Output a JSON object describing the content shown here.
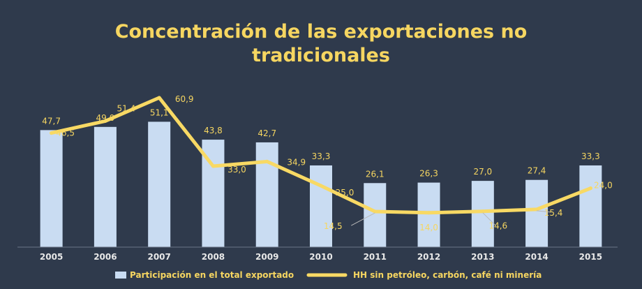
{
  "chart_data": {
    "type": "bar",
    "title_lines": [
      "Concentración de las exportaciones no",
      "tradicionales"
    ],
    "categories": [
      "2005",
      "2006",
      "2007",
      "2008",
      "2009",
      "2010",
      "2011",
      "2012",
      "2013",
      "2014",
      "2015"
    ],
    "series": [
      {
        "name": "Participación en el total exportado",
        "type": "bar",
        "values": [
          47.7,
          49.0,
          51.1,
          43.8,
          42.7,
          33.3,
          26.1,
          26.3,
          27.0,
          27.4,
          33.3
        ],
        "labels": [
          "47,7",
          "49,0",
          "51,1",
          "43,8",
          "42,7",
          "33,3",
          "26,1",
          "26,3",
          "27,0",
          "27,4",
          "33,3"
        ]
      },
      {
        "name": "HH sin petróleo, carbón, café ni minería",
        "type": "line",
        "values": [
          46.5,
          51.4,
          60.9,
          33.0,
          34.9,
          25.0,
          14.5,
          14.0,
          14.6,
          15.4,
          24.0
        ],
        "labels": [
          "46,5",
          "51,4",
          "60,9",
          "33,0",
          "34,9",
          "25,0",
          "14,5",
          "14,0",
          "14,6",
          "15,4",
          "24,0"
        ]
      }
    ],
    "ylim": [
      0,
      70
    ],
    "grid": false,
    "legend_position": "bottom",
    "colors": {
      "bar": "#c9dcf2",
      "line": "#f8d964",
      "text": "#f6d661",
      "axis_text": "#e8e8e8",
      "background": "#2f3a4c"
    }
  }
}
